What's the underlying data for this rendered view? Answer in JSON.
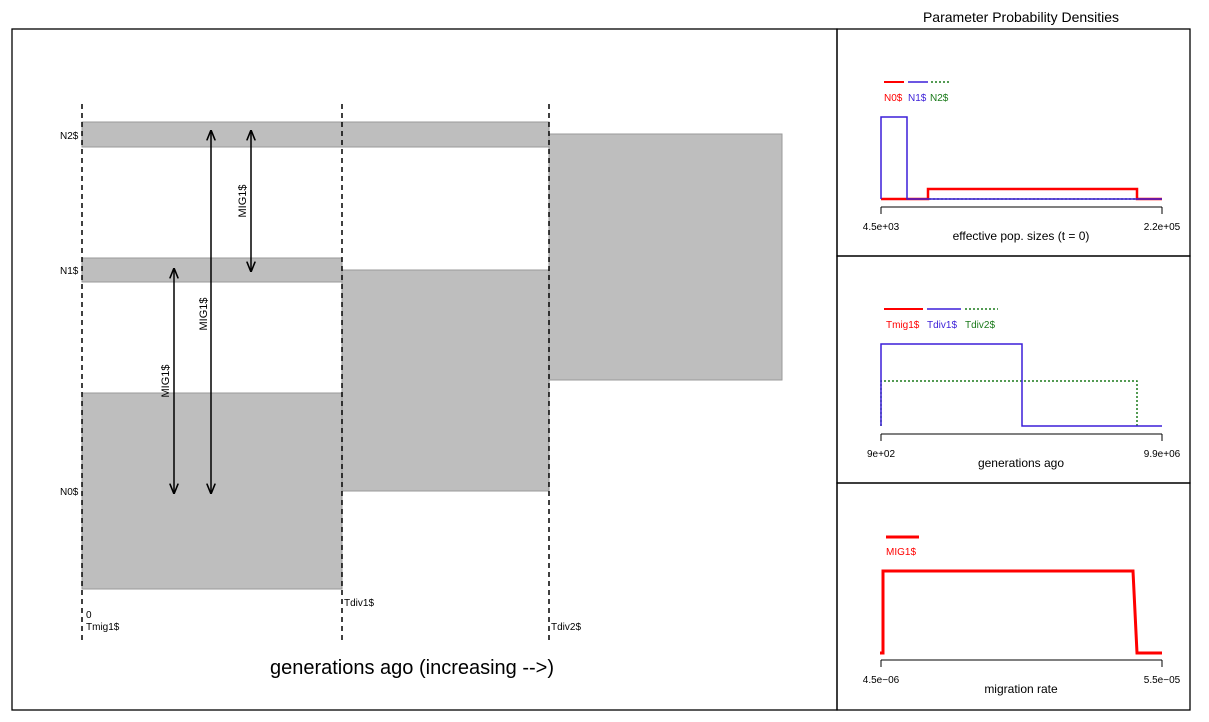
{
  "title": "Parameter Probability Densities",
  "diagram": {
    "xlabel": "generations ago (increasing -->)",
    "time_labels": {
      "zero": "0",
      "tmig": "Tmig1$",
      "tdiv1": "Tdiv1$",
      "tdiv2": "Tdiv2$"
    },
    "pop_labels": {
      "n0": "N0$",
      "n1": "N1$",
      "n2": "N2$"
    },
    "migration_labels": {
      "mig_a": "MIG1$",
      "mig_b": "MIG1$",
      "mig_c": "MIG1$"
    },
    "colors": {
      "population_fill": "#bebebe",
      "population_stroke": "#9a9a9a"
    }
  },
  "panels": [
    {
      "xlabel": "effective pop. sizes (t = 0)",
      "xmin_label": "4.5e+03",
      "xmax_label": "2.2e+05",
      "legend": [
        {
          "name": "N0$",
          "color": "#ff0000",
          "style": "solid"
        },
        {
          "name": "N1$",
          "color": "#3b1fd8",
          "style": "solid"
        },
        {
          "name": "N2$",
          "color": "#1a7a1a",
          "style": "dotted"
        }
      ]
    },
    {
      "xlabel": "generations ago",
      "xmin_label": "9e+02",
      "xmax_label": "9.9e+06",
      "legend": [
        {
          "name": "Tmig1$",
          "color": "#ff0000",
          "style": "solid"
        },
        {
          "name": "Tdiv1$",
          "color": "#3b1fd8",
          "style": "solid"
        },
        {
          "name": "Tdiv2$",
          "color": "#1a7a1a",
          "style": "dotted"
        }
      ]
    },
    {
      "xlabel": "migration rate",
      "xmin_label": "4.5e−06",
      "xmax_label": "5.5e−05",
      "legend": [
        {
          "name": "MIG1$",
          "color": "#ff0000",
          "style": "solid"
        }
      ]
    }
  ]
}
